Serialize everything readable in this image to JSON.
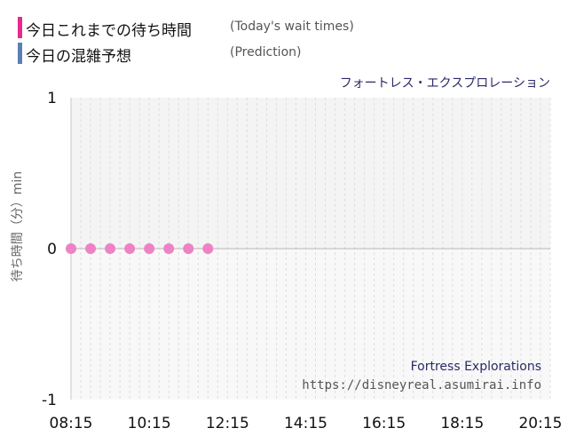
{
  "legend": {
    "wait_label": "今日これまでの待ち時間",
    "wait_sub": "(Today's wait times)",
    "wait_color": "#e8288e",
    "pred_label": "今日の混雑予想",
    "pred_sub": "(Prediction)",
    "pred_color": "#5b7fb5"
  },
  "attraction_title": "フォートレス・エクスプロレーション",
  "watermark": {
    "name": "Fortress Explorations",
    "url": "https://disneyreal.asumirai.info"
  },
  "chart_data": {
    "type": "scatter",
    "ylabel": "待ち時間（分）min",
    "ylim": [
      -1,
      1
    ],
    "yticks": [
      "1",
      "0",
      "-1"
    ],
    "xlim": [
      "08:15",
      "20:30"
    ],
    "xticks": [
      "08:15",
      "10:15",
      "12:15",
      "14:15",
      "16:15",
      "18:15",
      "20:15"
    ],
    "grid": true,
    "series": [
      {
        "color": "#ee82c4",
        "x": [
          "08:15",
          "08:45",
          "09:15",
          "09:45",
          "10:15",
          "10:45",
          "11:15",
          "11:45"
        ],
        "y": [
          0,
          0,
          0,
          0,
          0,
          0,
          0,
          0
        ]
      }
    ]
  }
}
